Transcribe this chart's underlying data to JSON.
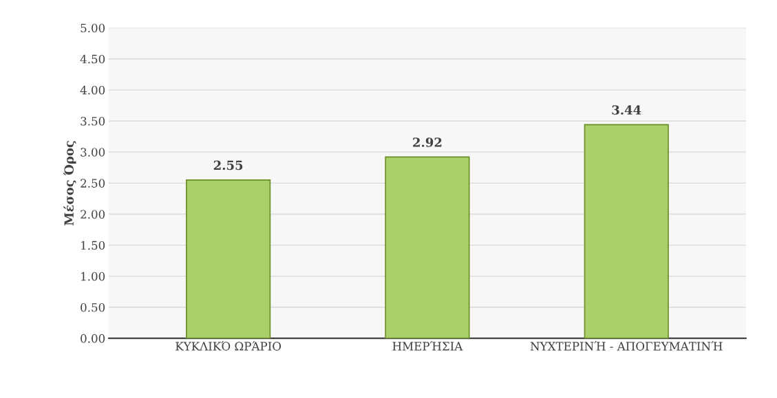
{
  "chart_data": {
    "type": "bar",
    "ylabel": "Μέσος Όρος",
    "categories": [
      "ΚΥΚΛΙΚΌ ΩΡΆΡΙΟ",
      "ΗΜΕΡΉΣΙΑ",
      "ΝΥΧΤΕΡΙΝΉ - ΑΠΟΓΕΥΜΑΤΙΝΉ"
    ],
    "values": [
      2.55,
      2.92,
      3.44
    ],
    "color": "#a9d06a",
    "ylim": [
      0,
      5
    ],
    "yticks": [
      {
        "value": 0,
        "label": "0.00"
      },
      {
        "value": 0.5,
        "label": "0.50"
      },
      {
        "value": 1,
        "label": "1.00"
      },
      {
        "value": 1.5,
        "label": "1.50"
      },
      {
        "value": 2,
        "label": "2.00"
      },
      {
        "value": 2.5,
        "label": "2.50"
      },
      {
        "value": 3,
        "label": "3.00"
      },
      {
        "value": 3.5,
        "label": "3.50"
      },
      {
        "value": 4,
        "label": "4.00"
      },
      {
        "value": 4.5,
        "label": "4.50"
      },
      {
        "value": 5,
        "label": "5.00"
      }
    ],
    "grid": "y",
    "data_labels": true
  }
}
